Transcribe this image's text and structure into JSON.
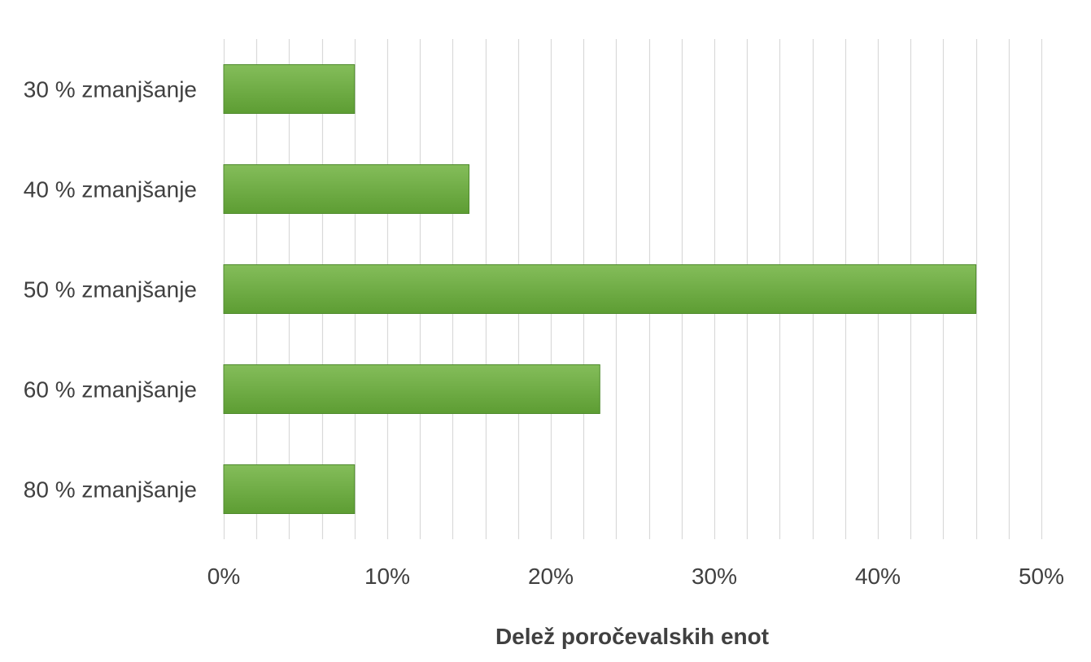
{
  "chart_data": {
    "type": "bar",
    "orientation": "horizontal",
    "categories": [
      "30 % zmanjšanje",
      "40 % zmanjšanje",
      "50 % zmanjšanje",
      "60 % zmanjšanje",
      "80 % zmanjšanje"
    ],
    "values": [
      0.08,
      0.15,
      0.46,
      0.23,
      0.08
    ],
    "xlabel": "Delež poročevalskih enot",
    "ylabel": "",
    "xlim": [
      0,
      0.5
    ],
    "x_ticks": [
      0,
      0.1,
      0.2,
      0.3,
      0.4,
      0.5
    ],
    "x_tick_labels": [
      "0%",
      "10%",
      "20%",
      "30%",
      "40%",
      "50%"
    ],
    "minor_grid_step": 0.02,
    "grid": true,
    "legend": "none",
    "colors": {
      "bar_top": "#84bd5a",
      "bar_bottom": "#5d9d33",
      "bar_edge": "#4e8a2c",
      "grid": "#d9d9d9",
      "text": "#404040"
    }
  }
}
